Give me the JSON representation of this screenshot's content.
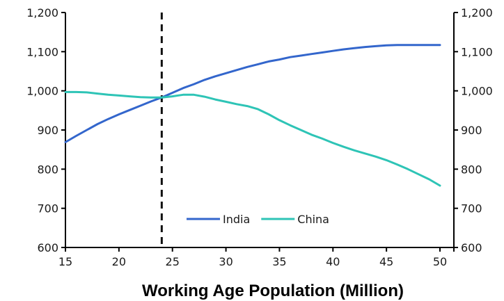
{
  "chart_data": {
    "type": "line",
    "title": "Working Age Population (Million)",
    "xlim": [
      15,
      50
    ],
    "ylim": [
      600,
      1200
    ],
    "x_ticks": [
      15,
      20,
      25,
      30,
      35,
      40,
      45,
      50
    ],
    "y_ticks": [
      600,
      700,
      800,
      900,
      1000,
      1100,
      1200
    ],
    "y_tick_labels": [
      "600",
      "700",
      "800",
      "900",
      "1,000",
      "1,100",
      "1,200"
    ],
    "secondary_y_axis": true,
    "grid": false,
    "reference_line": {
      "x": 24,
      "style": "dashed"
    },
    "legend_position": "bottom-center",
    "series": [
      {
        "name": "India",
        "color": "#3366cc",
        "x": [
          15,
          16,
          17,
          18,
          19,
          20,
          21,
          22,
          23,
          24,
          25,
          26,
          27,
          28,
          29,
          30,
          31,
          32,
          33,
          34,
          35,
          36,
          37,
          38,
          39,
          40,
          41,
          42,
          43,
          44,
          45,
          46,
          47,
          48,
          49,
          50
        ],
        "values": [
          869,
          885,
          900,
          915,
          928,
          940,
          951,
          962,
          973,
          983,
          995,
          1007,
          1017,
          1028,
          1037,
          1045,
          1053,
          1061,
          1068,
          1075,
          1080,
          1086,
          1090,
          1094,
          1098,
          1102,
          1106,
          1109,
          1112,
          1114,
          1116,
          1117,
          1117,
          1117,
          1117,
          1117
        ]
      },
      {
        "name": "China",
        "color": "#2ec4b6",
        "x": [
          15,
          16,
          17,
          18,
          19,
          20,
          21,
          22,
          23,
          24,
          25,
          26,
          27,
          28,
          29,
          30,
          31,
          32,
          33,
          34,
          35,
          36,
          37,
          38,
          39,
          40,
          41,
          42,
          43,
          44,
          45,
          46,
          47,
          48,
          49,
          50
        ],
        "values": [
          997,
          997,
          996,
          993,
          990,
          988,
          986,
          984,
          983,
          983,
          986,
          990,
          990,
          985,
          978,
          972,
          966,
          961,
          953,
          940,
          925,
          912,
          900,
          888,
          878,
          867,
          857,
          848,
          840,
          832,
          823,
          812,
          800,
          787,
          774,
          758
        ]
      }
    ]
  }
}
